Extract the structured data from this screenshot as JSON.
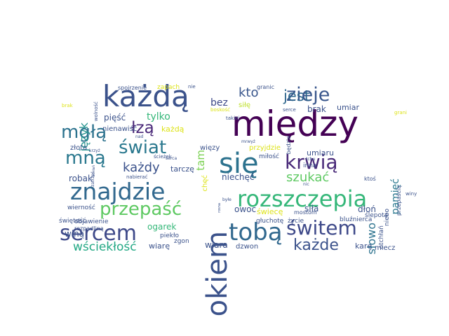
{
  "cloud": {
    "words": [
      {
        "text": "między",
        "color": "#440154"
      },
      {
        "text": "każdą",
        "color": "#3b528b"
      },
      {
        "text": "się",
        "color": "#2c728e"
      },
      {
        "text": "rozszczepia",
        "color": "#35b779"
      },
      {
        "text": "znajdzie",
        "color": "#31688e"
      },
      {
        "text": "okiem",
        "color": "#3b528b"
      },
      {
        "text": "sercem",
        "color": "#3e4989"
      },
      {
        "text": "tobą",
        "color": "#31688e"
      },
      {
        "text": "świtem",
        "color": "#3e4989"
      },
      {
        "text": "zieje",
        "color": "#39568c"
      },
      {
        "text": "krwią",
        "color": "#482878"
      },
      {
        "text": "mgłą",
        "color": "#2c728e"
      },
      {
        "text": "łzą",
        "color": "#482677"
      },
      {
        "text": "świat",
        "color": "#2a788e"
      },
      {
        "text": "mną",
        "color": "#2a788e"
      },
      {
        "text": "przepaść",
        "color": "#5ec962"
      },
      {
        "text": "każde",
        "color": "#3b528b"
      },
      {
        "text": "jest",
        "color": "#31688e"
      },
      {
        "text": "kto",
        "color": "#39568c"
      },
      {
        "text": "wściekłość",
        "color": "#22a884"
      },
      {
        "text": "każdy",
        "color": "#3b528b"
      },
      {
        "text": "szukać",
        "color": "#5ec962"
      },
      {
        "text": "tylko",
        "color": "#35b779"
      },
      {
        "text": "słowo",
        "color": "#2c728e"
      },
      {
        "text": "pamięć",
        "color": "#2a788e"
      },
      {
        "text": "tam",
        "color": "#7ad151"
      },
      {
        "text": "bez",
        "color": "#3e4989"
      },
      {
        "text": "język",
        "color": "#21918c"
      },
      {
        "text": "ogarek",
        "color": "#35b779"
      },
      {
        "text": "wiarę",
        "color": "#3b528b"
      },
      {
        "text": "winą",
        "color": "#3b528b"
      },
      {
        "text": "robak",
        "color": "#3b528b"
      },
      {
        "text": "pięść",
        "color": "#3b528b"
      },
      {
        "text": "owoc",
        "color": "#3b528b"
      },
      {
        "text": "siła",
        "color": "#3b528b"
      },
      {
        "text": "dłoń",
        "color": "#3b528b"
      },
      {
        "text": "wiara",
        "color": "#3b528b"
      },
      {
        "text": "niechęć",
        "color": "#3b528b"
      },
      {
        "text": "brak",
        "color": "#3b528b"
      },
      {
        "text": "siłę",
        "color": "#bddf26"
      },
      {
        "text": "umiar",
        "color": "#3b528b"
      },
      {
        "text": "umiaru",
        "color": "#3b528b"
      },
      {
        "text": "złota",
        "color": "#3b528b"
      },
      {
        "text": "nienawiść",
        "color": "#3b528b"
      },
      {
        "text": "każdą",
        "color": "#dde318"
      },
      {
        "text": "tarczę",
        "color": "#3b528b"
      },
      {
        "text": "więzy",
        "color": "#3b528b"
      },
      {
        "text": "przyjdzie",
        "color": "#dde318"
      },
      {
        "text": "miłość",
        "color": "#3b528b"
      },
      {
        "text": "inna",
        "color": "#3b528b"
      },
      {
        "text": "świecę",
        "color": "#dde318"
      },
      {
        "text": "głuchotę",
        "color": "#3b528b"
      },
      {
        "text": "życie",
        "color": "#3b528b"
      },
      {
        "text": "bluźnierca",
        "color": "#3b528b"
      },
      {
        "text": "otchłań",
        "color": "#3b528b"
      },
      {
        "text": "karę",
        "color": "#3b528b"
      },
      {
        "text": "miecz",
        "color": "#3b528b"
      },
      {
        "text": "dzwon",
        "color": "#3b528b"
      },
      {
        "text": "zgon",
        "color": "#3b528b"
      },
      {
        "text": "piekło",
        "color": "#3b528b"
      },
      {
        "text": "wierność",
        "color": "#3b528b"
      },
      {
        "text": "świętość",
        "color": "#3b528b"
      },
      {
        "text": "objawienie",
        "color": "#3b528b"
      },
      {
        "text": "rozpadliną",
        "color": "#3b528b"
      },
      {
        "text": "chęć",
        "color": "#dde318"
      },
      {
        "text": "ślepota",
        "color": "#3b528b"
      },
      {
        "text": "niebo",
        "color": "#3b528b"
      },
      {
        "text": "przepaścią",
        "color": "#3b528b"
      },
      {
        "text": "winy",
        "color": "#3b528b"
      },
      {
        "text": "ktoś",
        "color": "#3b528b"
      },
      {
        "text": "będzie",
        "color": "#3b528b"
      },
      {
        "text": "mostom",
        "color": "#3b528b"
      },
      {
        "text": "zapach",
        "color": "#dde318"
      },
      {
        "text": "granic",
        "color": "#3b528b"
      },
      {
        "text": "spojrzenie",
        "color": "#3b528b"
      },
      {
        "text": "nie",
        "color": "#3b528b"
      },
      {
        "text": "wolność",
        "color": "#3b528b"
      },
      {
        "text": "brak",
        "color": "#dde318"
      },
      {
        "text": "boskość",
        "color": "#dde318"
      },
      {
        "text": "takiej",
        "color": "#3b528b"
      },
      {
        "text": "serce",
        "color": "#3b528b"
      },
      {
        "text": "grani",
        "color": "#dde318"
      },
      {
        "text": "nad",
        "color": "#3b528b"
      },
      {
        "text": "krzyż",
        "color": "#3b528b"
      },
      {
        "text": "ścieżek",
        "color": "#3b528b"
      },
      {
        "text": "serca",
        "color": "#3b528b"
      },
      {
        "text": "nabierać",
        "color": "#3b528b"
      },
      {
        "text": "zatrzeć",
        "color": "#3b528b"
      },
      {
        "text": "ochłań",
        "color": "#3b528b"
      },
      {
        "text": "mrwyż",
        "color": "#3b528b"
      },
      {
        "text": "tchu",
        "color": "#3b528b"
      },
      {
        "text": "nic",
        "color": "#3b528b"
      },
      {
        "text": "byłe",
        "color": "#3b528b"
      },
      {
        "text": "rosna",
        "color": "#3b528b"
      }
    ]
  }
}
